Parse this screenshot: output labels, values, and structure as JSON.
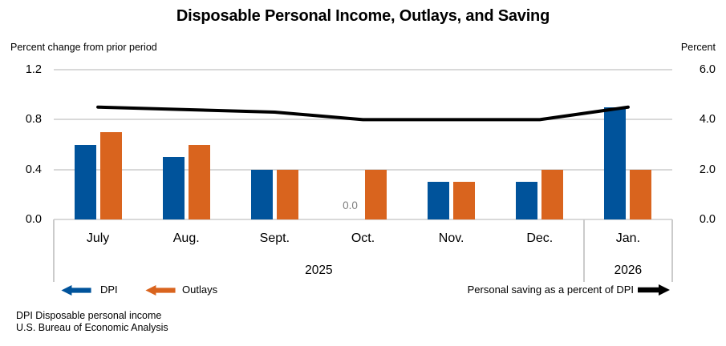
{
  "page": {
    "background": "#FFFFFF"
  },
  "chart_data": {
    "type": "bar+line",
    "title": "Disposable Personal Income, Outlays, and Saving",
    "categories": [
      "July",
      "Aug.",
      "Sept.",
      "Oct.",
      "Nov.",
      "Dec.",
      "Jan."
    ],
    "year_groups": [
      {
        "label": "2025",
        "from": 0,
        "to": 5
      },
      {
        "label": "2026",
        "from": 6,
        "to": 6
      }
    ],
    "left_axis": {
      "caption": "Percent change from prior period",
      "min": 0,
      "max": 1.2,
      "tick_values": [
        0,
        0.4,
        0.8,
        1.2
      ],
      "tick_labels": [
        "0.0",
        "0.4",
        "0.8",
        "1.2"
      ]
    },
    "right_axis": {
      "caption": "Percent",
      "min": 0,
      "max": 6.0,
      "tick_values": [
        0,
        2,
        4,
        6
      ],
      "tick_labels": [
        "0.0",
        "2.0",
        "4.0",
        "6.0"
      ]
    },
    "series": [
      {
        "name": "DPI",
        "type": "bar",
        "axis": "left",
        "color": "#00539B",
        "values": [
          0.6,
          0.5,
          0.4,
          0.0,
          0.3,
          0.3,
          0.9
        ]
      },
      {
        "name": "Outlays",
        "type": "bar",
        "axis": "left",
        "color": "#D9641E",
        "values": [
          0.7,
          0.6,
          0.4,
          0.4,
          0.3,
          0.4,
          0.4
        ]
      },
      {
        "name": "Personal saving as a percent of DPI",
        "type": "line",
        "axis": "right",
        "color": "#000000",
        "values": [
          4.5,
          4.4,
          4.3,
          4.0,
          4.0,
          4.0,
          4.5
        ]
      }
    ],
    "annotations": [
      {
        "category_index": 3,
        "series": "DPI",
        "text": "0.0",
        "color": "#808080"
      }
    ],
    "gridline_color": "#D9D9D9",
    "separator_color": "#CBCBCB",
    "grid": true,
    "legend_position": "bottom"
  },
  "legend": {
    "dpi_label": "DPI",
    "outlays_label": "Outlays",
    "saving_label": "Personal saving as a percent of DPI"
  },
  "footnotes": [
    "DPI Disposable personal income",
    "U.S. Bureau of Economic Analysis"
  ]
}
